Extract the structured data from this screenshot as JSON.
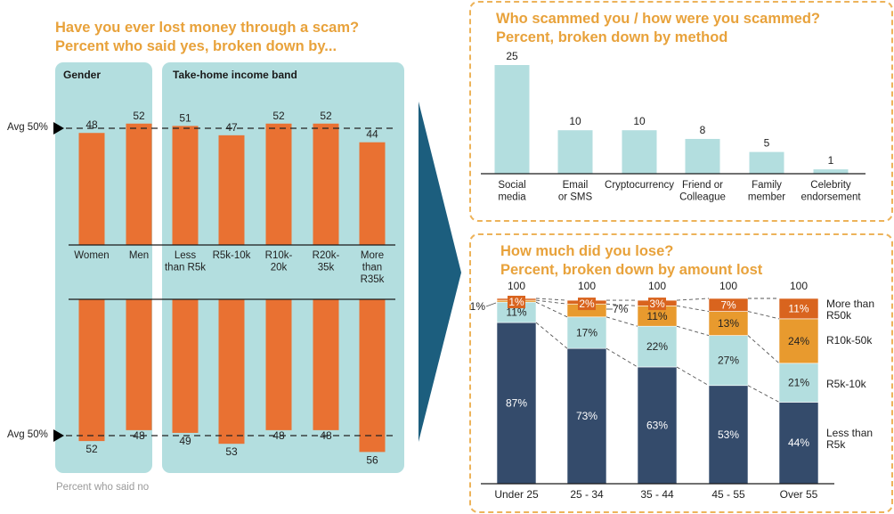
{
  "left": {
    "title_line1": "Have you ever lost money through a scam?",
    "title_line2": "Percent who said yes, broken down by...",
    "panel_gender": "Gender",
    "panel_income": "Take-home income band",
    "avg_label_top": "Avg 50%",
    "avg_label_bottom": "Avg 50%",
    "note": "Percent who said no"
  },
  "right_top": {
    "title_line1": "Who scammed you / how were you scammed?",
    "title_line2": "Percent, broken down by method"
  },
  "right_bottom": {
    "title_line1": "How much did you lose?",
    "title_line2": "Percent, broken down by amount lost"
  },
  "colors": {
    "orange_bar": "#E97132",
    "teal_panel": "#B3DEDF",
    "title_orange": "#E8A23B",
    "navy": "#344B6B",
    "light_teal": "#B3DEDF",
    "amber": "#E89A2E",
    "dark_orange": "#D9641E",
    "arrow": "#1C5E7E"
  },
  "chart_data": [
    {
      "type": "bar",
      "title": "Have you ever lost money through a scam? Percent who said yes",
      "groups": [
        "Gender",
        "Gender",
        "Take-home income band",
        "Take-home income band",
        "Take-home income band",
        "Take-home income band",
        "Take-home income band"
      ],
      "categories": [
        [
          "Women"
        ],
        [
          "Men"
        ],
        [
          "Less",
          "than R5k"
        ],
        [
          "R5k-10k"
        ],
        [
          "R10k-",
          "20k"
        ],
        [
          "R20k-",
          "35k"
        ],
        [
          "More",
          "than",
          "R35k"
        ]
      ],
      "values": [
        48,
        52,
        51,
        47,
        52,
        52,
        44
      ],
      "value_labels": [
        "48",
        "52",
        "51",
        "47",
        "52",
        "52",
        "44"
      ],
      "reference_line": {
        "label": "Avg 50%",
        "value": 50
      },
      "ylim": [
        0,
        50
      ]
    },
    {
      "type": "bar",
      "title": "Percent who said no",
      "orientation": "downward",
      "categories": [
        "Women",
        "Men",
        "Less than R5k",
        "R5k-10k",
        "R10k-20k",
        "R20k-35k",
        "More than R35k"
      ],
      "values": [
        52,
        48,
        49,
        53,
        48,
        48,
        56
      ],
      "value_labels": [
        "52",
        "48",
        "49",
        "53",
        "48",
        "48",
        "56"
      ],
      "reference_line": {
        "label": "Avg 50%",
        "value": 50
      }
    },
    {
      "type": "bar",
      "title": "Who scammed you / how were you scammed? Percent, broken down by method",
      "categories": [
        [
          "Social",
          "media"
        ],
        [
          "Email",
          "or SMS"
        ],
        [
          "Cryptocurrency"
        ],
        [
          "Friend or",
          "Colleague"
        ],
        [
          "Family",
          "member"
        ],
        [
          "Celebrity",
          "endorsement"
        ]
      ],
      "values": [
        25,
        10,
        10,
        8,
        5,
        1
      ],
      "value_labels": [
        "25",
        "10",
        "10",
        "8",
        "5",
        "1"
      ],
      "ylim": [
        0,
        25
      ]
    },
    {
      "type": "bar",
      "stacked": true,
      "title": "How much did you lose? Percent, broken down by amount lost",
      "categories": [
        "Under 25",
        "25 - 34",
        "35 - 44",
        "45 - 55",
        "Over 55"
      ],
      "totals": [
        "100",
        "100",
        "100",
        "100",
        "100"
      ],
      "series": [
        {
          "name": "Less than R5k",
          "legend": [
            "Less than",
            "R5k"
          ],
          "values": [
            87,
            73,
            63,
            53,
            44
          ],
          "labels": [
            "87%",
            "73%",
            "63%",
            "53%",
            "44%"
          ]
        },
        {
          "name": "R5k-10k",
          "legend": [
            "R5k-10k"
          ],
          "values": [
            11,
            17,
            22,
            27,
            21
          ],
          "labels": [
            "11%",
            "17%",
            "22%",
            "27%",
            "21%"
          ]
        },
        {
          "name": "R10k-50k",
          "legend": [
            "R10k-50k"
          ],
          "values": [
            1,
            7,
            11,
            13,
            24
          ],
          "labels": [
            "1%",
            "7%",
            "11%",
            "13%",
            "24%"
          ]
        },
        {
          "name": "More than R50k",
          "legend": [
            "More than",
            "R50k"
          ],
          "values": [
            1,
            2,
            3,
            7,
            11
          ],
          "labels": [
            "1%",
            "2%",
            "3%",
            "7%",
            "11%"
          ]
        }
      ],
      "ylim": [
        0,
        100
      ]
    }
  ]
}
